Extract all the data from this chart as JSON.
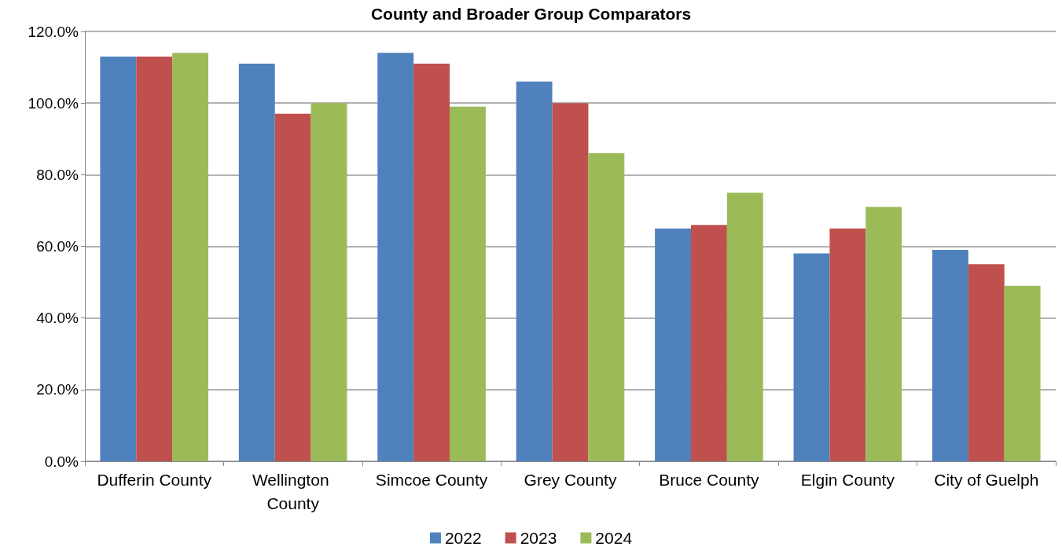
{
  "chart_data": {
    "type": "bar",
    "title": "County and Broader Group Comparators",
    "categories": [
      "Dufferin County",
      "Wellington County",
      "Simcoe County",
      "Grey County",
      "Bruce County",
      "Elgin County",
      "City of Guelph"
    ],
    "series": [
      {
        "name": "2022",
        "color": "#4f81bd",
        "values": [
          113,
          111,
          114,
          106,
          65,
          58,
          59
        ]
      },
      {
        "name": "2023",
        "color": "#c0504d",
        "values": [
          113,
          97,
          111,
          100,
          66,
          65,
          55
        ]
      },
      {
        "name": "2024",
        "color": "#9bbb59",
        "values": [
          114,
          100,
          99,
          86,
          75,
          71,
          49
        ]
      }
    ],
    "ylim": [
      0,
      120
    ],
    "yticks": [
      {
        "value": 0,
        "label": "0.0%"
      },
      {
        "value": 20,
        "label": "20.0%"
      },
      {
        "value": 40,
        "label": "40.0%"
      },
      {
        "value": 60,
        "label": "60.0%"
      },
      {
        "value": 80,
        "label": "80.0%"
      },
      {
        "value": 100,
        "label": "100.0%"
      },
      {
        "value": 120,
        "label": "120.0%"
      }
    ],
    "grid": "y",
    "legend": "bottom"
  }
}
